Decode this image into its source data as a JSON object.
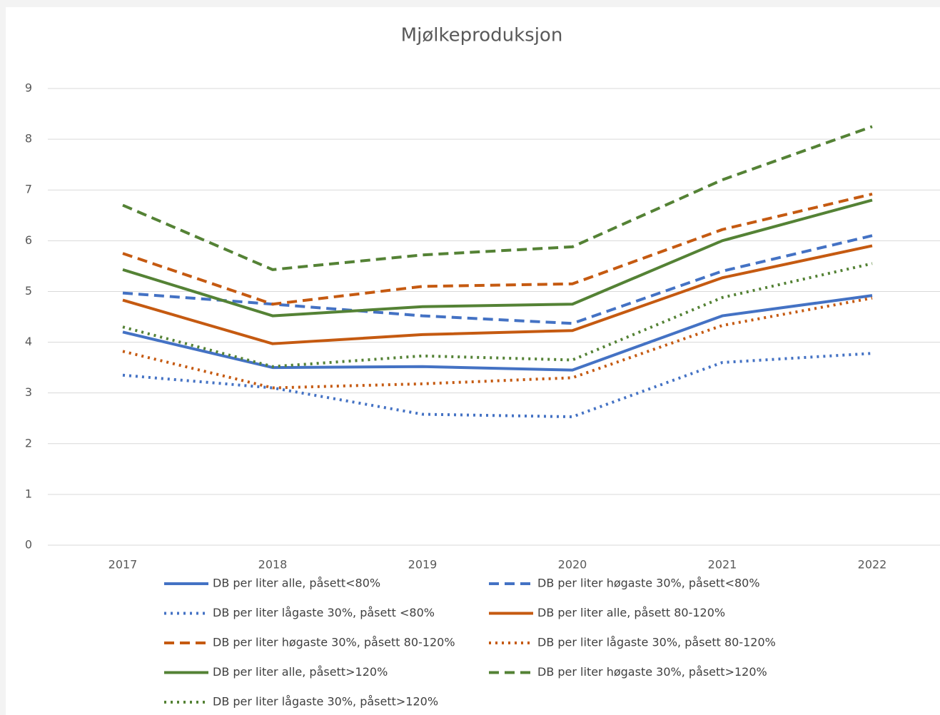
{
  "chart_data": {
    "type": "line",
    "title": "Mjølkeproduksjon",
    "categories": [
      "2017",
      "2018",
      "2019",
      "2020",
      "2021",
      "2022"
    ],
    "ylim": [
      0,
      9
    ],
    "yticks": [
      0,
      1,
      2,
      3,
      4,
      5,
      6,
      7,
      8,
      9
    ],
    "grid": true,
    "series": [
      {
        "name": "DB per liter alle, påsett<80%",
        "color": "#4472c4",
        "dash": "solid",
        "values": [
          4.2,
          3.5,
          3.52,
          3.45,
          4.52,
          4.92
        ]
      },
      {
        "name": "DB per liter høgaste 30%, påsett<80%",
        "color": "#4472c4",
        "dash": "dashed",
        "values": [
          4.97,
          4.75,
          4.52,
          4.37,
          5.4,
          6.1
        ]
      },
      {
        "name": "DB per liter lågaste 30%, påsett <80%",
        "color": "#4472c4",
        "dash": "dotted",
        "values": [
          3.35,
          3.1,
          2.58,
          2.53,
          3.6,
          3.78
        ]
      },
      {
        "name": "DB per liter alle, påsett 80-120%",
        "color": "#c55a11",
        "dash": "solid",
        "values": [
          4.83,
          3.97,
          4.15,
          4.23,
          5.27,
          5.9
        ]
      },
      {
        "name": "DB per liter høgaste 30%, påsett 80-120%",
        "color": "#c55a11",
        "dash": "dashed",
        "values": [
          5.75,
          4.75,
          5.1,
          5.15,
          6.22,
          6.92
        ]
      },
      {
        "name": "DB per liter lågaste 30%, påsett 80-120%",
        "color": "#c55a11",
        "dash": "dotted",
        "values": [
          3.82,
          3.1,
          3.18,
          3.3,
          4.33,
          4.87
        ]
      },
      {
        "name": "DB per liter alle, påsett>120%",
        "color": "#548235",
        "dash": "solid",
        "values": [
          5.43,
          4.52,
          4.7,
          4.75,
          6.0,
          6.8
        ]
      },
      {
        "name": "DB per liter høgaste 30%, påsett>120%",
        "color": "#548235",
        "dash": "dashed",
        "values": [
          6.7,
          5.43,
          5.72,
          5.88,
          7.2,
          8.25
        ]
      },
      {
        "name": "DB per liter lågaste 30%, påsett>120%",
        "color": "#548235",
        "dash": "dotted",
        "values": [
          4.3,
          3.52,
          3.73,
          3.65,
          4.88,
          5.55
        ]
      }
    ]
  }
}
